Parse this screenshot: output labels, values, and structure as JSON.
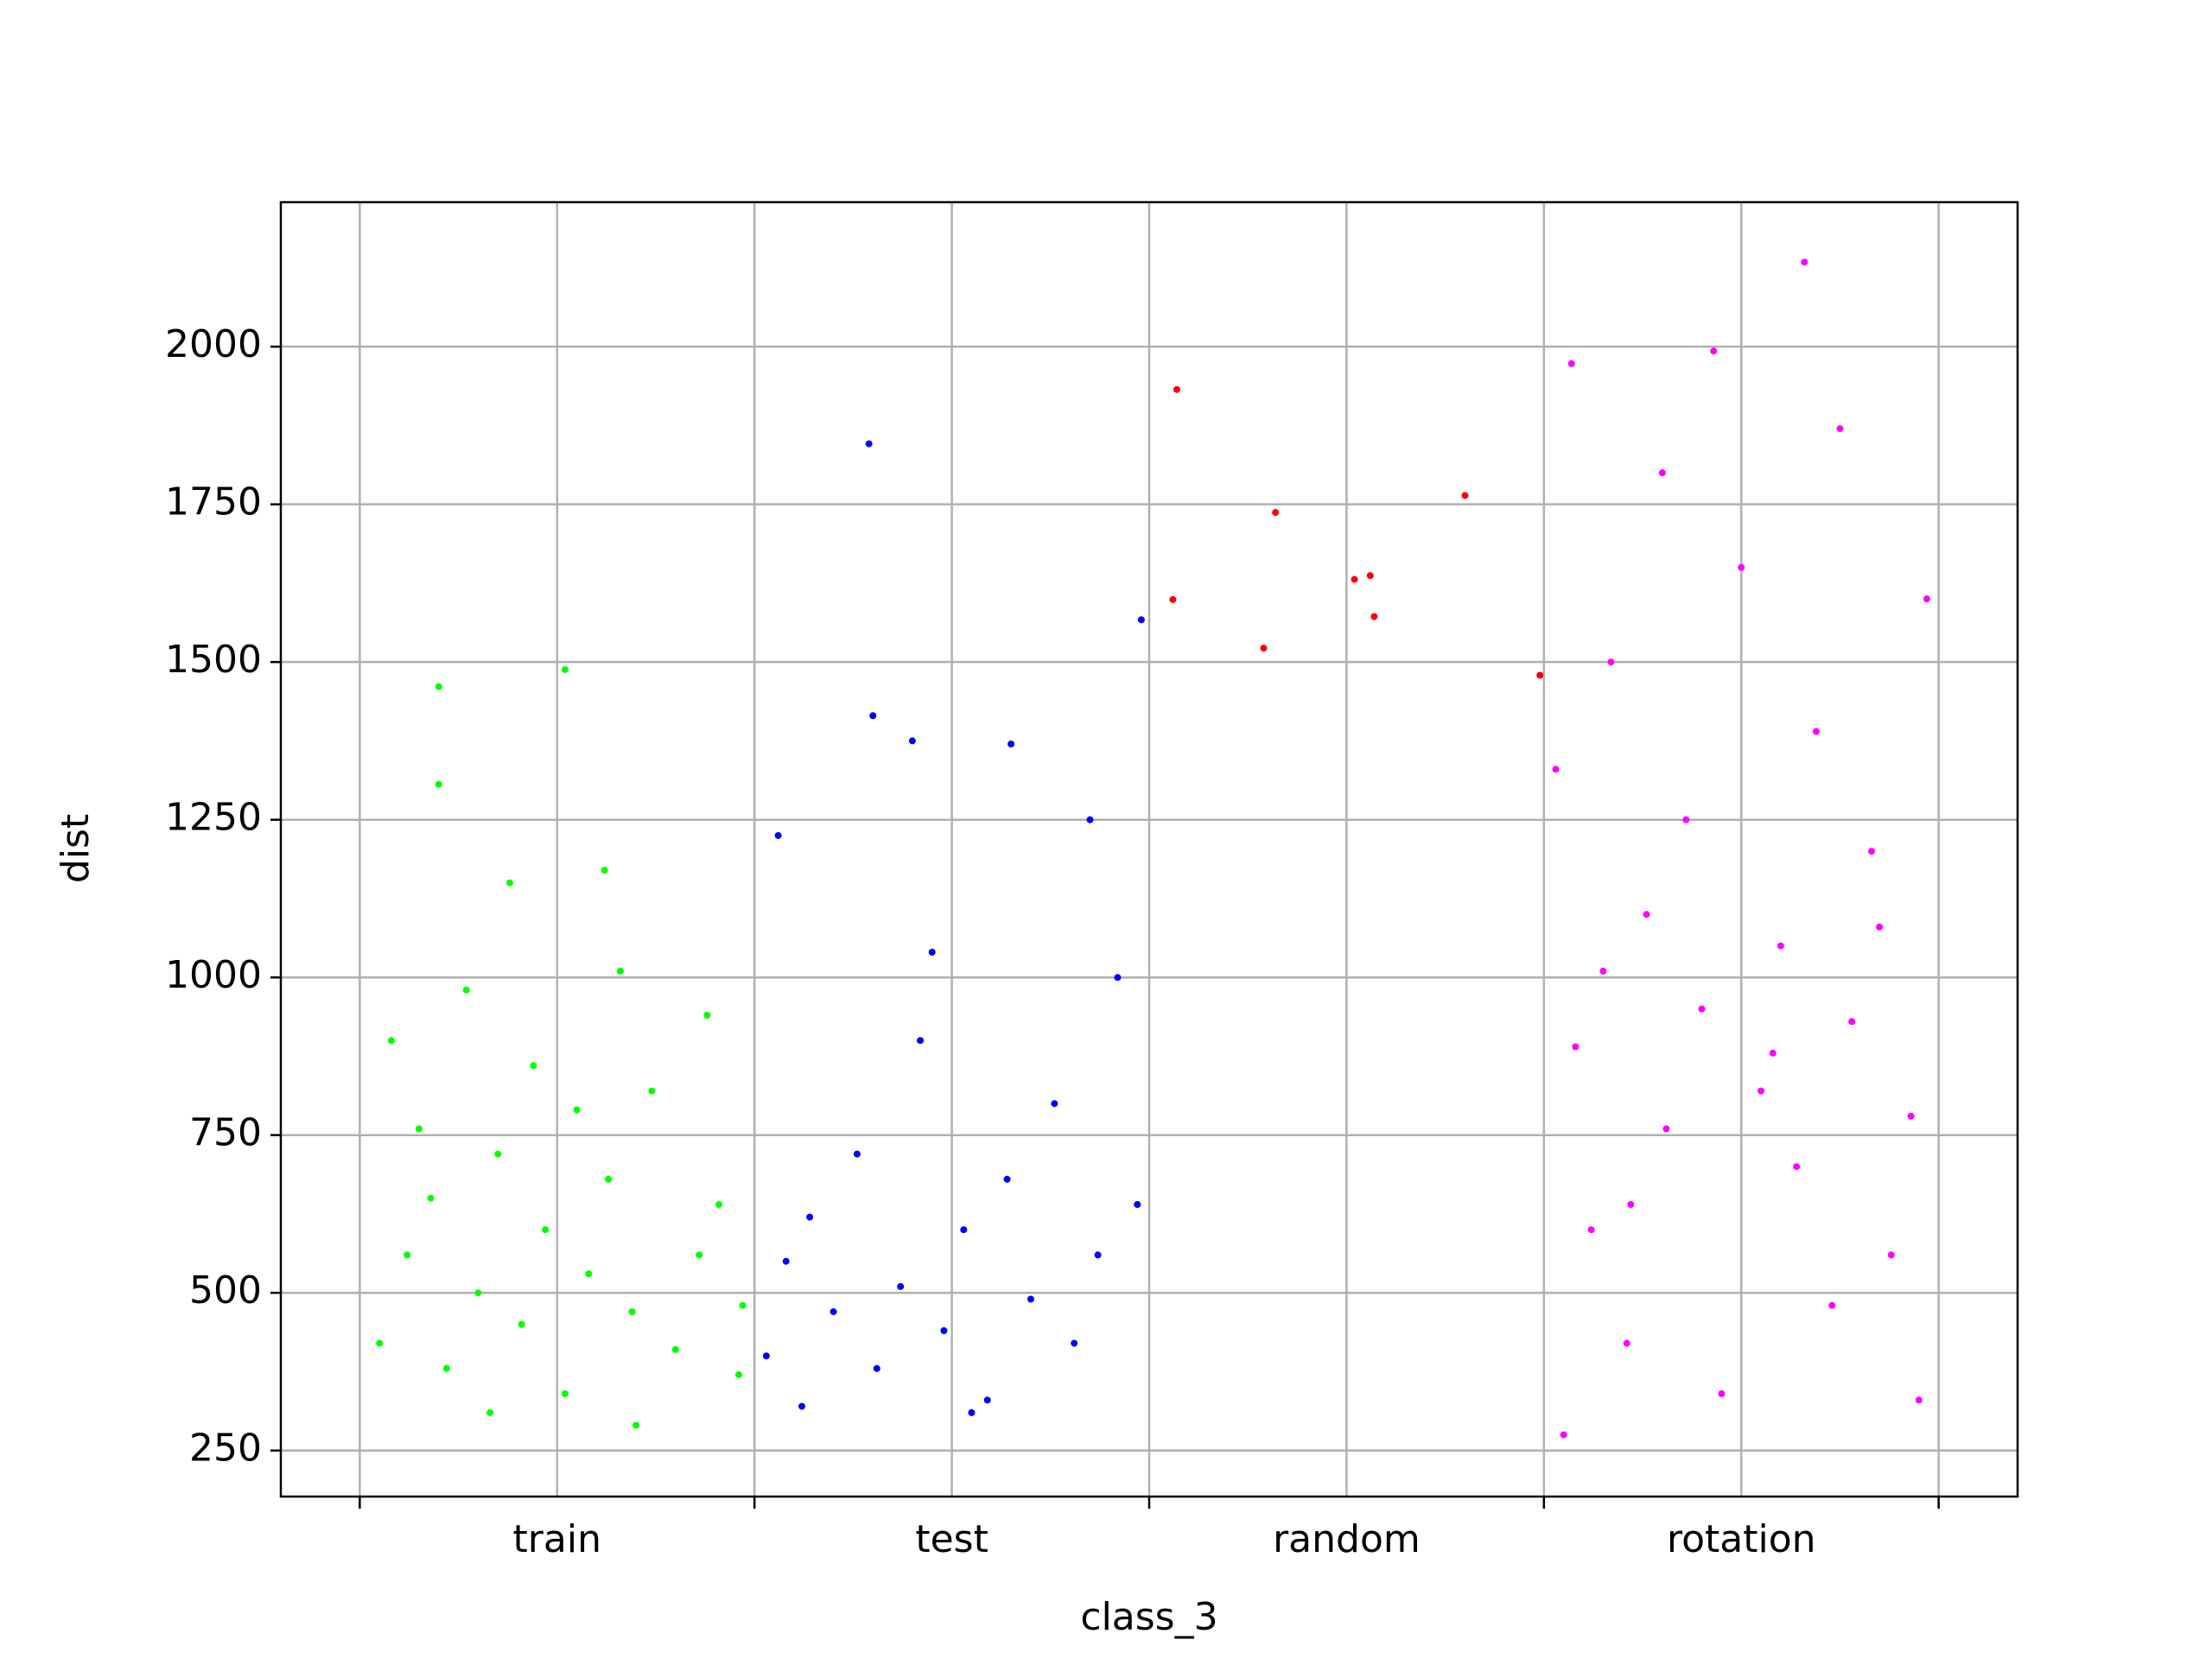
{
  "chart_data": {
    "type": "scatter",
    "x_label": "class_3",
    "y_label": "dist",
    "xlim": [
      -0.2,
      4.2
    ],
    "ylim": [
      177,
      2229
    ],
    "xticks": [
      {
        "value": 0.5,
        "label": "train"
      },
      {
        "value": 1.5,
        "label": "test"
      },
      {
        "value": 2.5,
        "label": "random"
      },
      {
        "value": 3.5,
        "label": "rotation"
      }
    ],
    "xminorticks": [
      0,
      1,
      2,
      3,
      4
    ],
    "yticks": [
      250,
      500,
      750,
      1000,
      1250,
      1500,
      1750,
      2000
    ],
    "grid": true,
    "series": [
      {
        "name": "train",
        "color": "#00ff00",
        "x": [
          0.05,
          0.12,
          0.18,
          0.22,
          0.3,
          0.35,
          0.41,
          0.47,
          0.52,
          0.58,
          0.63,
          0.69,
          0.74,
          0.8,
          0.86,
          0.91,
          0.96,
          0.08,
          0.27,
          0.44,
          0.66,
          0.88,
          0.2,
          0.52,
          0.2,
          0.33,
          0.7,
          0.15,
          0.55,
          0.97,
          0.38,
          0.62
        ],
        "y": [
          420,
          560,
          650,
          380,
          500,
          720,
          450,
          600,
          340,
          530,
          680,
          470,
          820,
          410,
          560,
          640,
          370,
          900,
          980,
          860,
          1010,
          940,
          1461,
          1488,
          1306,
          310,
          290,
          760,
          790,
          480,
          1150,
          1170
        ]
      },
      {
        "name": "test",
        "color": "#0000ff",
        "x": [
          1.03,
          1.08,
          1.14,
          1.2,
          1.26,
          1.31,
          1.37,
          1.42,
          1.48,
          1.53,
          1.59,
          1.64,
          1.7,
          1.76,
          1.81,
          1.87,
          1.92,
          1.97,
          1.29,
          1.98,
          1.3,
          1.4,
          1.65,
          1.06,
          1.45,
          1.85,
          1.12,
          1.55
        ],
        "y": [
          400,
          550,
          620,
          470,
          720,
          380,
          510,
          900,
          440,
          600,
          330,
          680,
          490,
          800,
          420,
          560,
          1000,
          640,
          1846,
          1567,
          1415,
          1375,
          1370,
          1225,
          1040,
          1250,
          320,
          310
        ]
      },
      {
        "name": "random",
        "color": "#ff0000",
        "x": [
          2.07,
          2.06,
          2.32,
          2.29,
          2.52,
          2.56,
          2.57,
          2.8,
          2.99
        ],
        "y": [
          1932,
          1599,
          1737,
          1522,
          1631,
          1637,
          1572,
          1764,
          1479
        ]
      },
      {
        "name": "rotation",
        "color": "#ff00ff",
        "x": [
          3.03,
          3.08,
          3.12,
          3.17,
          3.21,
          3.26,
          3.31,
          3.36,
          3.4,
          3.45,
          3.5,
          3.55,
          3.6,
          3.64,
          3.69,
          3.73,
          3.78,
          3.83,
          3.88,
          3.93,
          3.97,
          3.07,
          3.43,
          3.66,
          3.05,
          3.3,
          3.75,
          3.95,
          3.15,
          3.58,
          3.85,
          3.22
        ],
        "y": [
          1330,
          890,
          600,
          1500,
          420,
          1100,
          760,
          1250,
          950,
          340,
          1650,
          820,
          1050,
          700,
          1390,
          480,
          930,
          1200,
          560,
          780,
          1600,
          1973,
          1993,
          2134,
          275,
          1800,
          1870,
          330,
          1010,
          880,
          1080,
          640
        ]
      }
    ]
  }
}
